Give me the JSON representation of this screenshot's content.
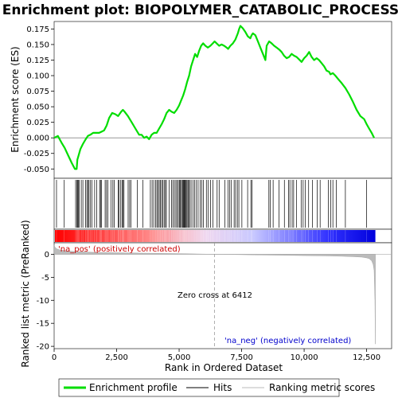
{
  "chart_data": [
    {
      "type": "line",
      "title": "Enrichment plot: BIOPOLYMER_CATABOLIC_PROCESS",
      "ylabel": "Enrichment score (ES)",
      "xlim": [
        0,
        13500
      ],
      "ylim": [
        -0.065,
        0.187
      ],
      "yticks": [
        -0.05,
        -0.025,
        0.0,
        0.025,
        0.05,
        0.075,
        0.1,
        0.125,
        0.15,
        0.175
      ],
      "ytick_labels": [
        "-0.050",
        "-0.025",
        "0.000",
        "0.025",
        "0.050",
        "0.075",
        "0.100",
        "0.125",
        "0.150",
        "0.175"
      ],
      "series": [
        {
          "name": "Enrichment profile",
          "color": "#00dd00",
          "x": [
            0,
            150,
            300,
            420,
            560,
            700,
            830,
            900,
            930,
            980,
            1050,
            1150,
            1250,
            1350,
            1450,
            1560,
            1680,
            1800,
            1900,
            2000,
            2100,
            2200,
            2320,
            2450,
            2560,
            2680,
            2750,
            2820,
            2950,
            3100,
            3250,
            3400,
            3500,
            3600,
            3700,
            3800,
            3900,
            4000,
            4100,
            4200,
            4300,
            4400,
            4500,
            4600,
            4700,
            4800,
            4900,
            5000,
            5080,
            5160,
            5240,
            5320,
            5400,
            5480,
            5560,
            5640,
            5720,
            5800,
            5880,
            5960,
            6050,
            6150,
            6250,
            6350,
            6420,
            6500,
            6600,
            6700,
            6800,
            6900,
            6960,
            7050,
            7150,
            7250,
            7350,
            7400,
            7450,
            7550,
            7650,
            7750,
            7850,
            7900,
            7950,
            8050,
            8150,
            8250,
            8350,
            8450,
            8500,
            8600,
            8700,
            8800,
            8900,
            9000,
            9100,
            9200,
            9300,
            9400,
            9500,
            9600,
            9700,
            9800,
            9900,
            10000,
            10100,
            10200,
            10300,
            10400,
            10500,
            10600,
            10700,
            10800,
            10900,
            11000,
            11050,
            11150,
            11250,
            11350,
            11500,
            11650,
            11800,
            11950,
            12100,
            12250,
            12400,
            12500,
            12600,
            12700,
            12800
          ],
          "y": [
            0.0,
            0.003,
            -0.008,
            -0.016,
            -0.028,
            -0.04,
            -0.05,
            -0.05,
            -0.035,
            -0.028,
            -0.018,
            -0.01,
            -0.003,
            0.003,
            0.005,
            0.008,
            0.008,
            0.008,
            0.01,
            0.012,
            0.02,
            0.032,
            0.04,
            0.038,
            0.035,
            0.042,
            0.045,
            0.042,
            0.035,
            0.025,
            0.015,
            0.005,
            0.005,
            0.0,
            0.002,
            -0.002,
            0.005,
            0.008,
            0.008,
            0.015,
            0.022,
            0.03,
            0.04,
            0.045,
            0.042,
            0.04,
            0.045,
            0.052,
            0.06,
            0.068,
            0.078,
            0.09,
            0.1,
            0.115,
            0.125,
            0.135,
            0.13,
            0.14,
            0.148,
            0.152,
            0.148,
            0.145,
            0.148,
            0.152,
            0.155,
            0.152,
            0.148,
            0.15,
            0.148,
            0.145,
            0.143,
            0.148,
            0.152,
            0.158,
            0.168,
            0.175,
            0.18,
            0.176,
            0.17,
            0.163,
            0.16,
            0.165,
            0.168,
            0.165,
            0.155,
            0.145,
            0.135,
            0.125,
            0.148,
            0.155,
            0.152,
            0.148,
            0.145,
            0.142,
            0.138,
            0.132,
            0.128,
            0.13,
            0.135,
            0.132,
            0.13,
            0.126,
            0.122,
            0.128,
            0.132,
            0.138,
            0.13,
            0.125,
            0.128,
            0.125,
            0.12,
            0.115,
            0.108,
            0.106,
            0.102,
            0.104,
            0.1,
            0.095,
            0.088,
            0.08,
            0.07,
            0.058,
            0.045,
            0.035,
            0.03,
            0.022,
            0.015,
            0.008,
            0.0
          ]
        }
      ]
    },
    {
      "type": "hits",
      "series_name": "Hits",
      "xlim": [
        0,
        13500
      ],
      "positions": [
        95,
        405,
        860,
        905,
        935,
        965,
        1000,
        1085,
        1150,
        1255,
        1310,
        1360,
        1395,
        1455,
        1515,
        1620,
        1700,
        1820,
        1855,
        1900,
        2040,
        2095,
        2150,
        2270,
        2350,
        2400,
        2560,
        2600,
        2665,
        2715,
        2755,
        2795,
        2960,
        3020,
        3070,
        3330,
        3550,
        3850,
        3920,
        3985,
        4055,
        4110,
        4160,
        4205,
        4255,
        4300,
        4350,
        4400,
        4450,
        4490,
        4600,
        4700,
        4750,
        4810,
        4870,
        4920,
        4970,
        5020,
        5050,
        5090,
        5130,
        5160,
        5190,
        5215,
        5245,
        5275,
        5310,
        5350,
        5380,
        5420,
        5480,
        5560,
        5620,
        5690,
        5760,
        5840,
        5900,
        5970,
        6090,
        6160,
        6260,
        6350,
        6520,
        6600,
        6830,
        6960,
        7020,
        7090,
        7200,
        7260,
        7330,
        7390,
        7510,
        7740,
        7870,
        7920,
        8590,
        8640,
        8760,
        8990,
        9210,
        9380,
        9430,
        9520,
        9580,
        9690,
        9880,
        9960,
        10050,
        10180,
        10330,
        10520,
        10640,
        10970,
        11060,
        11150,
        11290,
        11650,
        12500
      ]
    },
    {
      "type": "heatmap",
      "description": "ranking metric color bar, red (positively correlated) to blue (negatively correlated)",
      "colors": [
        "#ff0000",
        "#ff8a8a",
        "#f0d8f0",
        "#c8c8ff",
        "#3333ff",
        "#0000dd"
      ]
    },
    {
      "type": "area",
      "series_name": "Ranking metric scores",
      "xlabel": "Rank in Ordered Dataset",
      "ylabel": "Ranked list metric (PreRanked)",
      "xlim": [
        0,
        13500
      ],
      "ylim": [
        -20.5,
        2.5
      ],
      "xticks": [
        0,
        2500,
        5000,
        7500,
        10000,
        12500
      ],
      "xtick_labels": [
        "0",
        "2,500",
        "5,000",
        "7,500",
        "10,000",
        "12,500"
      ],
      "yticks": [
        -20,
        -15,
        -10,
        -5,
        0
      ],
      "ytick_labels": [
        "-20",
        "-15",
        "-10",
        "-5",
        "0"
      ],
      "x": [
        0,
        30,
        100,
        200,
        400,
        700,
        1000,
        1500,
        2000,
        3000,
        4000,
        5000,
        6000,
        6412,
        7000,
        8000,
        9000,
        10000,
        11000,
        11500,
        12000,
        12300,
        12500,
        12600,
        12700,
        12760,
        12800,
        12830,
        12850
      ],
      "y": [
        2.0,
        1.6,
        1.2,
        1.0,
        0.8,
        0.65,
        0.55,
        0.45,
        0.38,
        0.3,
        0.22,
        0.14,
        0.05,
        0.0,
        -0.05,
        -0.12,
        -0.2,
        -0.28,
        -0.36,
        -0.42,
        -0.52,
        -0.62,
        -0.78,
        -0.95,
        -1.4,
        -2.2,
        -3.5,
        -10.0,
        -19.5
      ],
      "zero_cross": 6412,
      "zero_cross_label": "Zero cross at 6412",
      "pos_label": "'na_pos' (positively correlated)",
      "neg_label": "'na_neg' (negatively correlated)",
      "pos_color": "#cc0000",
      "neg_color": "#0000cc"
    }
  ],
  "legend": {
    "items": [
      {
        "label": "Enrichment profile",
        "color": "#00dd00",
        "style": "thick"
      },
      {
        "label": "Hits",
        "color": "#000000",
        "style": "thin"
      },
      {
        "label": "Ranking metric scores",
        "color": "#bbbbbb",
        "style": "thin"
      }
    ]
  }
}
